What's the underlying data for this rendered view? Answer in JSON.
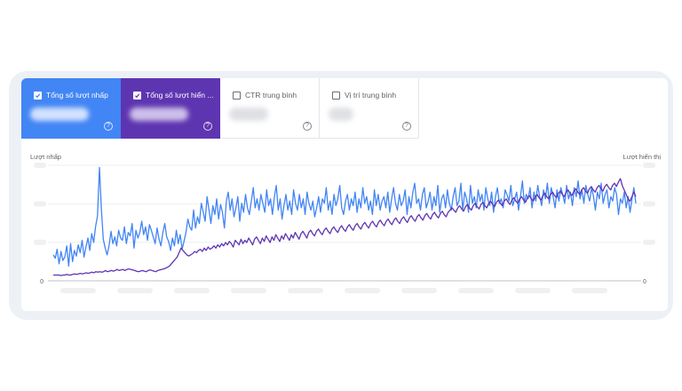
{
  "metric_tiles": [
    {
      "label": "Tổng số lượt nhấp",
      "selected": true,
      "color": "#4285f4",
      "value": ""
    },
    {
      "label": "Tổng số lượt hiển ...",
      "selected": true,
      "color": "#5e35b1",
      "value": ""
    },
    {
      "label": "CTR trung bình",
      "selected": false,
      "color": "#ffffff",
      "value": ""
    },
    {
      "label": "Vị trí trung bình",
      "selected": false,
      "color": "#ffffff",
      "value": ""
    }
  ],
  "help_icon": "help-circle-icon",
  "chart": {
    "left_axis_title": "Lượt nhấp",
    "right_axis_title": "Lượt hiển thị",
    "left_zero_label": "0",
    "right_zero_label": "0"
  },
  "chart_data": {
    "type": "line",
    "xlabel": "",
    "ylabel": "Lượt nhấp",
    "ylabel_right": "Lượt hiển thị",
    "grid": true,
    "legend": "none",
    "y_normalized": true,
    "series": [
      {
        "name": "Tổng số lượt nhấp",
        "color": "#4285f4",
        "values": [
          0.2,
          0.17,
          0.25,
          0.12,
          0.23,
          0.15,
          0.18,
          0.28,
          0.1,
          0.3,
          0.14,
          0.24,
          0.19,
          0.29,
          0.22,
          0.33,
          0.18,
          0.27,
          0.35,
          0.24,
          0.39,
          0.31,
          0.45,
          0.55,
          0.98,
          0.62,
          0.34,
          0.26,
          0.2,
          0.28,
          0.41,
          0.3,
          0.36,
          0.28,
          0.42,
          0.35,
          0.33,
          0.45,
          0.3,
          0.4,
          0.37,
          0.48,
          0.26,
          0.42,
          0.35,
          0.4,
          0.5,
          0.38,
          0.45,
          0.33,
          0.47,
          0.42,
          0.36,
          0.3,
          0.44,
          0.34,
          0.28,
          0.4,
          0.48,
          0.36,
          0.32,
          0.24,
          0.35,
          0.28,
          0.42,
          0.3,
          0.38,
          0.25,
          0.32,
          0.4,
          0.52,
          0.45,
          0.42,
          0.6,
          0.44,
          0.54,
          0.48,
          0.66,
          0.58,
          0.5,
          0.72,
          0.6,
          0.48,
          0.64,
          0.56,
          0.7,
          0.52,
          0.65,
          0.58,
          0.44,
          0.68,
          0.76,
          0.6,
          0.7,
          0.54,
          0.62,
          0.72,
          0.5,
          0.66,
          0.58,
          0.74,
          0.62,
          0.56,
          0.68,
          0.8,
          0.62,
          0.7,
          0.6,
          0.74,
          0.66,
          0.58,
          0.78,
          0.64,
          0.7,
          0.56,
          0.72,
          0.82,
          0.6,
          0.7,
          0.52,
          0.64,
          0.74,
          0.6,
          0.68,
          0.56,
          0.78,
          0.66,
          0.6,
          0.74,
          0.62,
          0.7,
          0.56,
          0.76,
          0.66,
          0.6,
          0.68,
          0.54,
          0.62,
          0.72,
          0.58,
          0.7,
          0.66,
          0.8,
          0.6,
          0.68,
          0.56,
          0.74,
          0.64,
          0.7,
          0.82,
          0.62,
          0.56,
          0.68,
          0.74,
          0.6,
          0.7,
          0.64,
          0.76,
          0.58,
          0.7,
          0.62,
          0.8,
          0.66,
          0.72,
          0.6,
          0.68,
          0.56,
          0.78,
          0.64,
          0.74,
          0.6,
          0.68,
          0.72,
          0.62,
          0.76,
          0.58,
          0.7,
          0.8,
          0.66,
          0.6,
          0.74,
          0.64,
          0.68,
          0.78,
          0.56,
          0.72,
          0.62,
          0.76,
          0.84,
          0.66,
          0.7,
          0.6,
          0.74,
          0.8,
          0.62,
          0.68,
          0.76,
          0.6,
          0.72,
          0.64,
          0.82,
          0.58,
          0.7,
          0.74,
          0.62,
          0.78,
          0.66,
          0.6,
          0.72,
          0.8,
          0.64,
          0.68,
          0.84,
          0.6,
          0.76,
          0.7,
          0.58,
          0.82,
          0.66,
          0.72,
          0.62,
          0.78,
          0.68,
          0.74,
          0.6,
          0.8,
          0.7,
          0.64,
          0.76,
          0.58,
          0.72,
          0.8,
          0.66,
          0.7,
          0.62,
          0.78,
          0.74,
          0.68,
          0.82,
          0.64,
          0.7,
          0.76,
          0.6,
          0.72,
          0.86,
          0.66,
          0.74,
          0.7,
          0.8,
          0.62,
          0.76,
          0.68,
          0.82,
          0.72,
          0.64,
          0.78,
          0.7,
          0.84,
          0.66,
          0.8,
          0.72,
          0.62,
          0.78,
          0.68,
          0.8,
          0.74,
          0.66,
          0.82,
          0.7,
          0.76,
          0.64,
          0.8,
          0.72,
          0.86,
          0.7,
          0.78,
          0.66,
          0.82,
          0.74,
          0.68,
          0.8,
          0.72,
          0.6,
          0.76,
          0.7,
          0.84,
          0.66,
          0.74,
          0.78,
          0.62,
          0.72,
          0.68,
          0.8,
          0.74,
          0.56,
          0.7,
          0.66,
          0.76,
          0.62,
          0.72,
          0.58,
          0.7,
          0.8,
          0.66
        ]
      },
      {
        "name": "Tổng số lượt hiển ...",
        "color": "#5e35b1",
        "values": [
          0.02,
          0.02,
          0.02,
          0.02,
          0.015,
          0.02,
          0.02,
          0.025,
          0.02,
          0.02,
          0.025,
          0.03,
          0.025,
          0.03,
          0.035,
          0.03,
          0.035,
          0.04,
          0.035,
          0.04,
          0.045,
          0.04,
          0.05,
          0.045,
          0.05,
          0.045,
          0.05,
          0.06,
          0.05,
          0.055,
          0.06,
          0.055,
          0.06,
          0.07,
          0.06,
          0.065,
          0.07,
          0.06,
          0.07,
          0.075,
          0.07,
          0.065,
          0.06,
          0.055,
          0.05,
          0.055,
          0.06,
          0.055,
          0.05,
          0.06,
          0.065,
          0.06,
          0.055,
          0.05,
          0.06,
          0.065,
          0.07,
          0.075,
          0.08,
          0.09,
          0.1,
          0.12,
          0.14,
          0.16,
          0.18,
          0.22,
          0.26,
          0.24,
          0.22,
          0.2,
          0.19,
          0.2,
          0.21,
          0.23,
          0.22,
          0.24,
          0.25,
          0.23,
          0.26,
          0.24,
          0.27,
          0.25,
          0.26,
          0.28,
          0.26,
          0.29,
          0.27,
          0.3,
          0.28,
          0.31,
          0.29,
          0.32,
          0.3,
          0.27,
          0.33,
          0.31,
          0.29,
          0.34,
          0.3,
          0.33,
          0.31,
          0.35,
          0.32,
          0.29,
          0.34,
          0.36,
          0.33,
          0.3,
          0.35,
          0.32,
          0.37,
          0.34,
          0.31,
          0.36,
          0.33,
          0.38,
          0.35,
          0.32,
          0.37,
          0.34,
          0.39,
          0.36,
          0.33,
          0.38,
          0.35,
          0.4,
          0.37,
          0.34,
          0.39,
          0.41,
          0.38,
          0.35,
          0.4,
          0.42,
          0.39,
          0.37,
          0.41,
          0.43,
          0.4,
          0.38,
          0.42,
          0.44,
          0.41,
          0.39,
          0.43,
          0.45,
          0.42,
          0.4,
          0.44,
          0.46,
          0.43,
          0.41,
          0.45,
          0.47,
          0.44,
          0.42,
          0.46,
          0.48,
          0.45,
          0.43,
          0.47,
          0.49,
          0.46,
          0.44,
          0.48,
          0.5,
          0.47,
          0.45,
          0.49,
          0.51,
          0.48,
          0.46,
          0.5,
          0.52,
          0.49,
          0.47,
          0.51,
          0.53,
          0.5,
          0.48,
          0.52,
          0.54,
          0.51,
          0.49,
          0.53,
          0.55,
          0.52,
          0.5,
          0.54,
          0.56,
          0.53,
          0.51,
          0.55,
          0.57,
          0.54,
          0.52,
          0.56,
          0.58,
          0.55,
          0.53,
          0.57,
          0.59,
          0.56,
          0.54,
          0.58,
          0.6,
          0.62,
          0.6,
          0.58,
          0.62,
          0.64,
          0.61,
          0.59,
          0.63,
          0.65,
          0.62,
          0.6,
          0.64,
          0.66,
          0.63,
          0.61,
          0.65,
          0.67,
          0.64,
          0.62,
          0.66,
          0.68,
          0.65,
          0.63,
          0.67,
          0.69,
          0.66,
          0.64,
          0.68,
          0.7,
          0.67,
          0.65,
          0.69,
          0.71,
          0.68,
          0.66,
          0.7,
          0.72,
          0.69,
          0.67,
          0.71,
          0.73,
          0.7,
          0.68,
          0.72,
          0.74,
          0.71,
          0.69,
          0.73,
          0.75,
          0.72,
          0.7,
          0.74,
          0.76,
          0.73,
          0.71,
          0.75,
          0.77,
          0.74,
          0.72,
          0.76,
          0.78,
          0.75,
          0.73,
          0.77,
          0.79,
          0.76,
          0.74,
          0.78,
          0.8,
          0.77,
          0.75,
          0.79,
          0.81,
          0.78,
          0.76,
          0.8,
          0.82,
          0.79,
          0.77,
          0.81,
          0.83,
          0.8,
          0.78,
          0.82,
          0.84,
          0.81,
          0.85,
          0.88,
          0.82,
          0.78,
          0.74,
          0.7,
          0.68,
          0.72,
          0.76,
          0.72
        ]
      }
    ]
  }
}
